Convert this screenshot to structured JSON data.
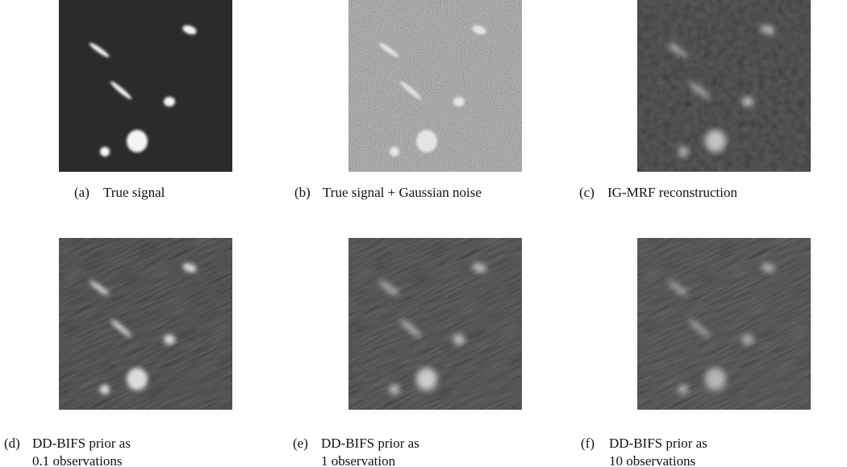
{
  "panels": [
    {
      "label": "(a)",
      "caption": [
        "True signal"
      ]
    },
    {
      "label": "(b)",
      "caption": [
        "True signal + Gaussian noise"
      ]
    },
    {
      "label": "(c)",
      "caption": [
        "IG-MRF reconstruction"
      ]
    },
    {
      "label": "(d)",
      "caption": [
        "DD-BIFS prior as",
        "0.1 observations"
      ]
    },
    {
      "label": "(e)",
      "caption": [
        "DD-BIFS prior as",
        "1 observation"
      ]
    },
    {
      "label": "(f)",
      "caption": [
        "DD-BIFS prior as",
        "10 observations"
      ]
    }
  ]
}
